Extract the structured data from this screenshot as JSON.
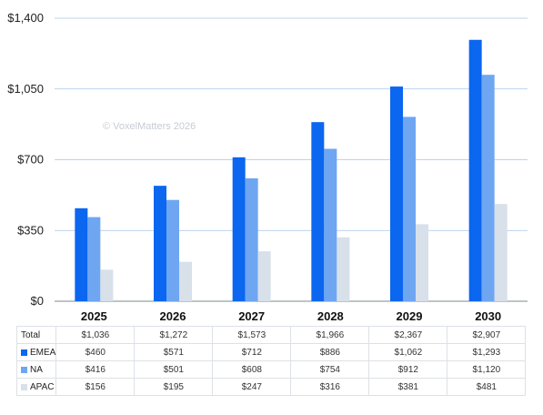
{
  "chart_data": {
    "type": "bar",
    "categories": [
      "2025",
      "2026",
      "2027",
      "2028",
      "2029",
      "2030"
    ],
    "series": [
      {
        "name": "EMEA",
        "color": "#0b66f0",
        "values": [
          460,
          571,
          712,
          886,
          1062,
          1293
        ]
      },
      {
        "name": "NA",
        "color": "#6ea6f2",
        "values": [
          416,
          501,
          608,
          754,
          912,
          1120
        ]
      },
      {
        "name": "APAC",
        "color": "#d8e0ea",
        "values": [
          156,
          195,
          247,
          316,
          381,
          481
        ]
      }
    ],
    "totals": [
      "$1,036",
      "$1,272",
      "$1,573",
      "$1,966",
      "$2,367",
      "$2,907"
    ],
    "y_ticks": [
      "$0",
      "$350",
      "$700",
      "$1,050",
      "$1,400"
    ],
    "ylim": [
      0,
      1400
    ],
    "watermark": "© VoxelMatters 2026",
    "grid": true
  },
  "table": {
    "total_label": "Total",
    "rows": [
      {
        "label": "EMEA",
        "color": "#0b66f0",
        "cells": [
          "$460",
          "$571",
          "$712",
          "$886",
          "$1,062",
          "$1,293"
        ]
      },
      {
        "label": "NA",
        "color": "#6ea6f2",
        "cells": [
          "$416",
          "$501",
          "$608",
          "$754",
          "$912",
          "$1,120"
        ]
      },
      {
        "label": "APAC",
        "color": "#d8e0ea",
        "cells": [
          "$156",
          "$195",
          "$247",
          "$316",
          "$381",
          "$481"
        ]
      }
    ]
  }
}
